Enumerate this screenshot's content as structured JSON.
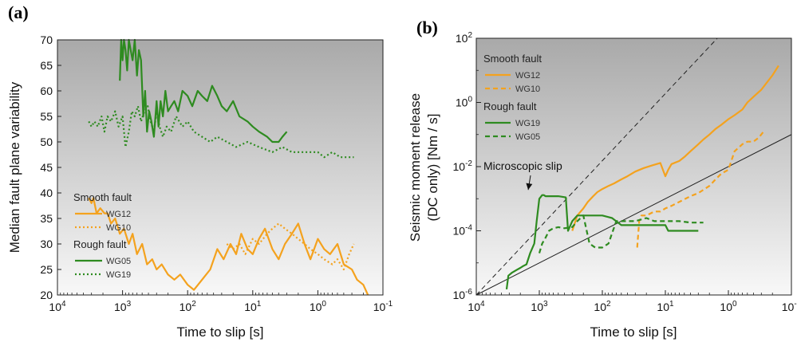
{
  "chart_data": [
    {
      "panel_label": "(a)",
      "type": "line",
      "title": "",
      "xlabel": "Time to slip [s]",
      "ylabel": "Median fault plane variability",
      "x_scale": "log-reversed",
      "xlim": [
        10000,
        0.1
      ],
      "ylim": [
        20,
        70
      ],
      "x_tick_labels": [
        {
          "value": 10000,
          "base": "10",
          "exp": "4"
        },
        {
          "value": 1000,
          "base": "10",
          "exp": "3"
        },
        {
          "value": 100,
          "base": "10",
          "exp": "2"
        },
        {
          "value": 10,
          "base": "10",
          "exp": "1"
        },
        {
          "value": 1,
          "base": "10",
          "exp": "0"
        },
        {
          "value": 0.1,
          "base": "10",
          "exp": "-1"
        }
      ],
      "y_ticks": [
        20,
        25,
        30,
        35,
        40,
        45,
        50,
        55,
        60,
        65,
        70
      ],
      "legend_groups": [
        {
          "title": "Smooth fault",
          "entries": [
            {
              "name": "WG12",
              "color": "#f4a21e",
              "dash": "solid"
            },
            {
              "name": "WG10",
              "color": "#f4a21e",
              "dash": "dotted"
            }
          ]
        },
        {
          "title": "Rough fault",
          "entries": [
            {
              "name": "WG05",
              "color": "#2e8b20",
              "dash": "solid"
            },
            {
              "name": "WG19",
              "color": "#2e8b20",
              "dash": "dotted"
            }
          ]
        }
      ],
      "series": [
        {
          "name": "WG12",
          "color": "#f4a21e",
          "dash": "solid",
          "x": [
            3300,
            3000,
            2800,
            2500,
            2200,
            1900,
            1700,
            1500,
            1300,
            1100,
            950,
            800,
            700,
            600,
            500,
            420,
            350,
            300,
            250,
            200,
            160,
            130,
            100,
            80,
            60,
            45,
            35,
            28,
            22,
            18,
            15,
            12,
            10,
            8,
            6.5,
            5,
            4,
            3.2,
            2.5,
            2,
            1.6,
            1.3,
            1,
            0.8,
            0.65,
            0.5,
            0.4,
            0.3,
            0.25,
            0.2,
            0.17
          ],
          "y": [
            39,
            38,
            39,
            36,
            37,
            36,
            36,
            34,
            35,
            32,
            33,
            30,
            32,
            28,
            30,
            26,
            27,
            25,
            26,
            24,
            23,
            24,
            22,
            21,
            23,
            25,
            29,
            27,
            30,
            28,
            32,
            29,
            28,
            31,
            33,
            29,
            27,
            30,
            32,
            34,
            30,
            27,
            31,
            29,
            28,
            30,
            26,
            25,
            23,
            22,
            20
          ]
        },
        {
          "name": "WG10",
          "color": "#f4a21e",
          "dash": "dotted",
          "x": [
            25,
            20,
            16,
            13,
            10,
            8,
            6,
            5,
            4,
            3.2,
            2.5,
            2,
            1.6,
            1.3,
            1,
            0.8,
            0.6,
            0.5,
            0.4,
            0.33,
            0.28
          ],
          "y": [
            30,
            29,
            30,
            28,
            31,
            30,
            32,
            33,
            34,
            33,
            32,
            31,
            30,
            29,
            28,
            27,
            26,
            27,
            25,
            28,
            30
          ]
        },
        {
          "name": "WG05",
          "color": "#2e8b20",
          "dash": "solid",
          "x": [
            1100,
            1050,
            1000,
            950,
            900,
            850,
            800,
            750,
            700,
            650,
            600,
            560,
            520,
            480,
            450,
            420,
            390,
            360,
            330,
            300,
            280,
            260,
            240,
            220,
            200,
            180,
            160,
            140,
            120,
            100,
            85,
            70,
            60,
            50,
            42,
            35,
            30,
            25,
            20,
            16,
            12,
            10,
            8,
            6,
            5,
            4,
            3.5,
            3
          ],
          "y": [
            62,
            70,
            66,
            70,
            68,
            64,
            70,
            68,
            66,
            70,
            63,
            68,
            66,
            55,
            60,
            52,
            56,
            54,
            51,
            58,
            53,
            58,
            55,
            60,
            56,
            57,
            58,
            56,
            60,
            59,
            57,
            60,
            59,
            58,
            61,
            59,
            57,
            56,
            58,
            55,
            54,
            53,
            52,
            51,
            50,
            50,
            51,
            52
          ]
        },
        {
          "name": "WG19",
          "color": "#2e8b20",
          "dash": "dotted",
          "x": [
            3300,
            3000,
            2700,
            2400,
            2100,
            1900,
            1700,
            1500,
            1300,
            1150,
            1000,
            900,
            800,
            720,
            650,
            580,
            520,
            460,
            410,
            370,
            330,
            300,
            270,
            240,
            210,
            180,
            150,
            120,
            100,
            80,
            60,
            45,
            35,
            25,
            18,
            12,
            8,
            5,
            3.5,
            2.5,
            1.8,
            1.3,
            1,
            0.8,
            0.6,
            0.45,
            0.35,
            0.28
          ],
          "y": [
            54,
            53,
            54,
            53,
            55,
            52,
            55,
            54,
            56,
            53,
            55,
            49,
            52,
            56,
            55,
            57,
            54,
            56,
            57,
            54,
            52,
            56,
            53,
            51,
            53,
            52,
            55,
            53,
            54,
            52,
            51,
            50,
            51,
            50,
            49,
            50,
            49,
            48,
            49,
            48,
            48,
            48,
            48,
            47,
            48,
            47,
            47,
            47
          ]
        }
      ]
    },
    {
      "panel_label": "(b)",
      "type": "line",
      "title": "",
      "xlabel": "Time to slip [s]",
      "ylabel_line1": "Seismic moment release",
      "ylabel_line2": "(DC only) [Nm / s]",
      "x_scale": "log-reversed",
      "y_scale": "log",
      "xlim": [
        10000,
        0.1
      ],
      "ylim": [
        1e-06,
        100
      ],
      "x_tick_labels": [
        {
          "value": 10000,
          "base": "10",
          "exp": "4"
        },
        {
          "value": 1000,
          "base": "10",
          "exp": "3"
        },
        {
          "value": 100,
          "base": "10",
          "exp": "2"
        },
        {
          "value": 10,
          "base": "10",
          "exp": "1"
        },
        {
          "value": 1,
          "base": "10",
          "exp": "0"
        },
        {
          "value": 0.1,
          "base": "10",
          "exp": "-1"
        }
      ],
      "y_tick_labels": [
        {
          "value": 1e-06,
          "base": "10",
          "exp": "-6"
        },
        {
          "value": 0.0001,
          "base": "10",
          "exp": "-4"
        },
        {
          "value": 0.01,
          "base": "10",
          "exp": "-2"
        },
        {
          "value": 1,
          "base": "10",
          "exp": "0"
        },
        {
          "value": 100,
          "base": "10",
          "exp": "2"
        }
      ],
      "legend_groups": [
        {
          "title": "Smooth fault",
          "entries": [
            {
              "name": "WG12",
              "color": "#f4a21e",
              "dash": "solid"
            },
            {
              "name": "WG10",
              "color": "#f4a21e",
              "dash": "dashed"
            }
          ]
        },
        {
          "title": "Rough fault",
          "entries": [
            {
              "name": "WG19",
              "color": "#2e8b20",
              "dash": "solid"
            },
            {
              "name": "WG05",
              "color": "#2e8b20",
              "dash": "dashed"
            }
          ]
        }
      ],
      "annotation": {
        "text": "Microscopic slip",
        "x": 1500,
        "y": 0.0015
      },
      "reference_lines": [
        {
          "style": "dashed",
          "color": "#222222",
          "x": [
            10000,
            1.5
          ],
          "y": [
            1e-06,
            100
          ]
        },
        {
          "style": "solid",
          "color": "#222222",
          "x": [
            10000,
            0.1
          ],
          "y": [
            1e-06,
            0.1
          ]
        }
      ],
      "series": [
        {
          "name": "WG12",
          "color": "#f4a21e",
          "dash": "solid",
          "x": [
            300,
            250,
            200,
            170,
            140,
            120,
            100,
            80,
            65,
            50,
            40,
            30,
            22,
            16,
            12,
            10,
            9,
            8,
            6,
            5,
            4,
            3,
            2.5,
            2,
            1.6,
            1.3,
            1,
            0.8,
            0.6,
            0.5,
            0.4,
            0.3,
            0.25,
            0.2,
            0.16
          ],
          "y": [
            0.0001,
            0.0003,
            0.0005,
            0.0008,
            0.0012,
            0.0016,
            0.002,
            0.0025,
            0.003,
            0.004,
            0.005,
            0.007,
            0.009,
            0.011,
            0.013,
            0.005,
            0.008,
            0.012,
            0.015,
            0.02,
            0.03,
            0.05,
            0.07,
            0.1,
            0.15,
            0.2,
            0.3,
            0.4,
            0.6,
            1.0,
            1.5,
            2.5,
            4.0,
            7.0,
            14.0
          ]
        },
        {
          "name": "WG10",
          "color": "#f4a21e",
          "dash": "dashed",
          "x": [
            28,
            26,
            24,
            20,
            15,
            12,
            10,
            8,
            6,
            4,
            3,
            2,
            1.6,
            1.3,
            1,
            0.8,
            0.6,
            0.5,
            0.4,
            0.33,
            0.28
          ],
          "y": [
            3e-05,
            0.0002,
            0.0003,
            0.0003,
            0.0004,
            0.0004,
            0.0005,
            0.0006,
            0.0008,
            0.0012,
            0.0015,
            0.0025,
            0.004,
            0.006,
            0.008,
            0.03,
            0.05,
            0.06,
            0.06,
            0.08,
            0.12
          ]
        },
        {
          "name": "WG19",
          "color": "#2e8b20",
          "dash": "solid",
          "x": [
            3300,
            3100,
            2700,
            2300,
            2000,
            1800,
            1600,
            1400,
            1200,
            1100,
            1000,
            900,
            850,
            800,
            700,
            500,
            380,
            350,
            300,
            250,
            200,
            150,
            100,
            70,
            50,
            30,
            20,
            12,
            10,
            9,
            7,
            5,
            4,
            3
          ],
          "y": [
            1.5e-06,
            4e-06,
            5e-06,
            6e-06,
            7e-06,
            8e-06,
            9e-06,
            2e-05,
            4e-05,
            0.0002,
            0.001,
            0.0013,
            0.0013,
            0.0012,
            0.0012,
            0.0012,
            0.0011,
            0.0001,
            0.0002,
            0.0003,
            0.0003,
            0.0003,
            0.0003,
            0.00025,
            0.00015,
            0.00015,
            0.00015,
            0.00015,
            0.00015,
            0.0001,
            0.0001,
            0.0001,
            0.0001,
            0.0001
          ]
        },
        {
          "name": "WG05",
          "color": "#2e8b20",
          "dash": "dashed",
          "x": [
            1000,
            900,
            800,
            700,
            600,
            500,
            400,
            300,
            250,
            200,
            160,
            130,
            100,
            80,
            60,
            40,
            30,
            20,
            15,
            10,
            6,
            4,
            3,
            2.5
          ],
          "y": [
            2e-05,
            4e-05,
            6e-05,
            0.0001,
            0.00012,
            0.00013,
            0.00012,
            0.00013,
            0.0002,
            0.0003,
            4e-05,
            3e-05,
            3e-05,
            4e-05,
            0.0002,
            0.0002,
            0.0002,
            0.00025,
            0.0002,
            0.0002,
            0.0002,
            0.00018,
            0.00018,
            0.00018
          ]
        }
      ]
    }
  ]
}
